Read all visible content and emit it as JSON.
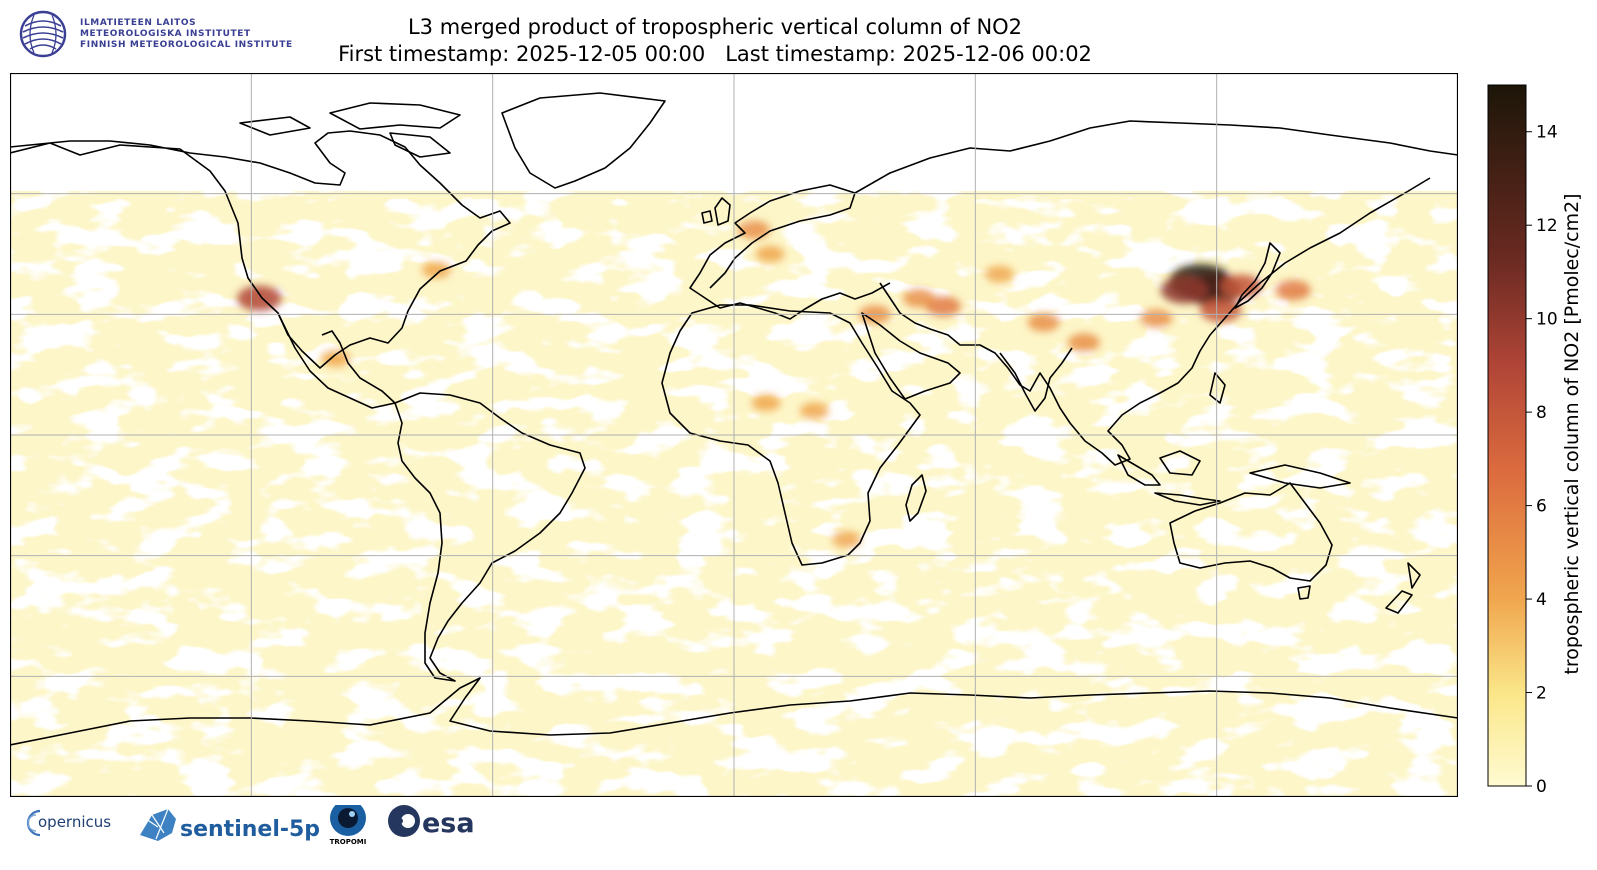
{
  "header": {
    "org_lines": [
      "ILMATIETEEN LAITOS",
      "METEOROLOGISKA INSTITUTET",
      "FINNISH METEOROLOGICAL INSTITUTE"
    ],
    "title_line1": "L3 merged product of tropospheric vertical column of NO2",
    "first_label": "First timestamp: 2025-12-05 00:00",
    "last_label": "Last timestamp: 2025-12-06 00:02"
  },
  "map_data": {
    "projection": "plate-carree",
    "extent_lon": [
      -180,
      180
    ],
    "extent_lat": [
      -90,
      90
    ],
    "gridlines_lon": [
      -120,
      -60,
      0,
      60,
      120
    ],
    "gridlines_lat": [
      -60,
      -30,
      0,
      30,
      60
    ],
    "background_color": "#fdf6c8",
    "no_data_color": "#ffffff",
    "coastline_color": "#000000",
    "hotspots": [
      {
        "lon": 116,
        "lat": 38,
        "value": 15
      },
      {
        "lon": 119,
        "lat": 36,
        "value": 13
      },
      {
        "lon": 112,
        "lat": 36,
        "value": 10
      },
      {
        "lon": 126,
        "lat": 37,
        "value": 8
      },
      {
        "lon": 139,
        "lat": 36,
        "value": 6
      },
      {
        "lon": 121,
        "lat": 31,
        "value": 8
      },
      {
        "lon": 77,
        "lat": 28,
        "value": 5
      },
      {
        "lon": 87,
        "lat": 23,
        "value": 5
      },
      {
        "lon": 52,
        "lat": 32,
        "value": 6
      },
      {
        "lon": 46,
        "lat": 34,
        "value": 5
      },
      {
        "lon": 35,
        "lat": 30,
        "value": 5
      },
      {
        "lon": 5,
        "lat": 51,
        "value": 5
      },
      {
        "lon": 9,
        "lat": 45,
        "value": 4
      },
      {
        "lon": -118,
        "lat": 34,
        "value": 9
      },
      {
        "lon": -74,
        "lat": 41,
        "value": 4
      },
      {
        "lon": -99,
        "lat": 19,
        "value": 4
      },
      {
        "lon": 8,
        "lat": 8,
        "value": 4
      },
      {
        "lon": 20,
        "lat": 6,
        "value": 4
      },
      {
        "lon": 28,
        "lat": -26,
        "value": 4
      },
      {
        "lon": 66,
        "lat": 40,
        "value": 4
      },
      {
        "lon": 105,
        "lat": 29,
        "value": 5
      }
    ]
  },
  "colorbar": {
    "label": "tropospheric vertical column of NO2 [Pmolec/cm2]",
    "min": 0,
    "max": 15,
    "ticks": [
      0,
      2,
      4,
      6,
      8,
      10,
      12,
      14
    ],
    "stops": [
      {
        "offset": 0.0,
        "color": "#fffbd2"
      },
      {
        "offset": 0.13,
        "color": "#fbe78a"
      },
      {
        "offset": 0.27,
        "color": "#f0a54d"
      },
      {
        "offset": 0.45,
        "color": "#dc6b3e"
      },
      {
        "offset": 0.6,
        "color": "#b04537"
      },
      {
        "offset": 0.75,
        "color": "#6b2a22"
      },
      {
        "offset": 1.0,
        "color": "#1c1608"
      }
    ]
  },
  "logos": {
    "copernicus": "opernicus",
    "sentinel": "sentinel-5p",
    "tropomi": "TROPOMI",
    "esa": "esa"
  }
}
